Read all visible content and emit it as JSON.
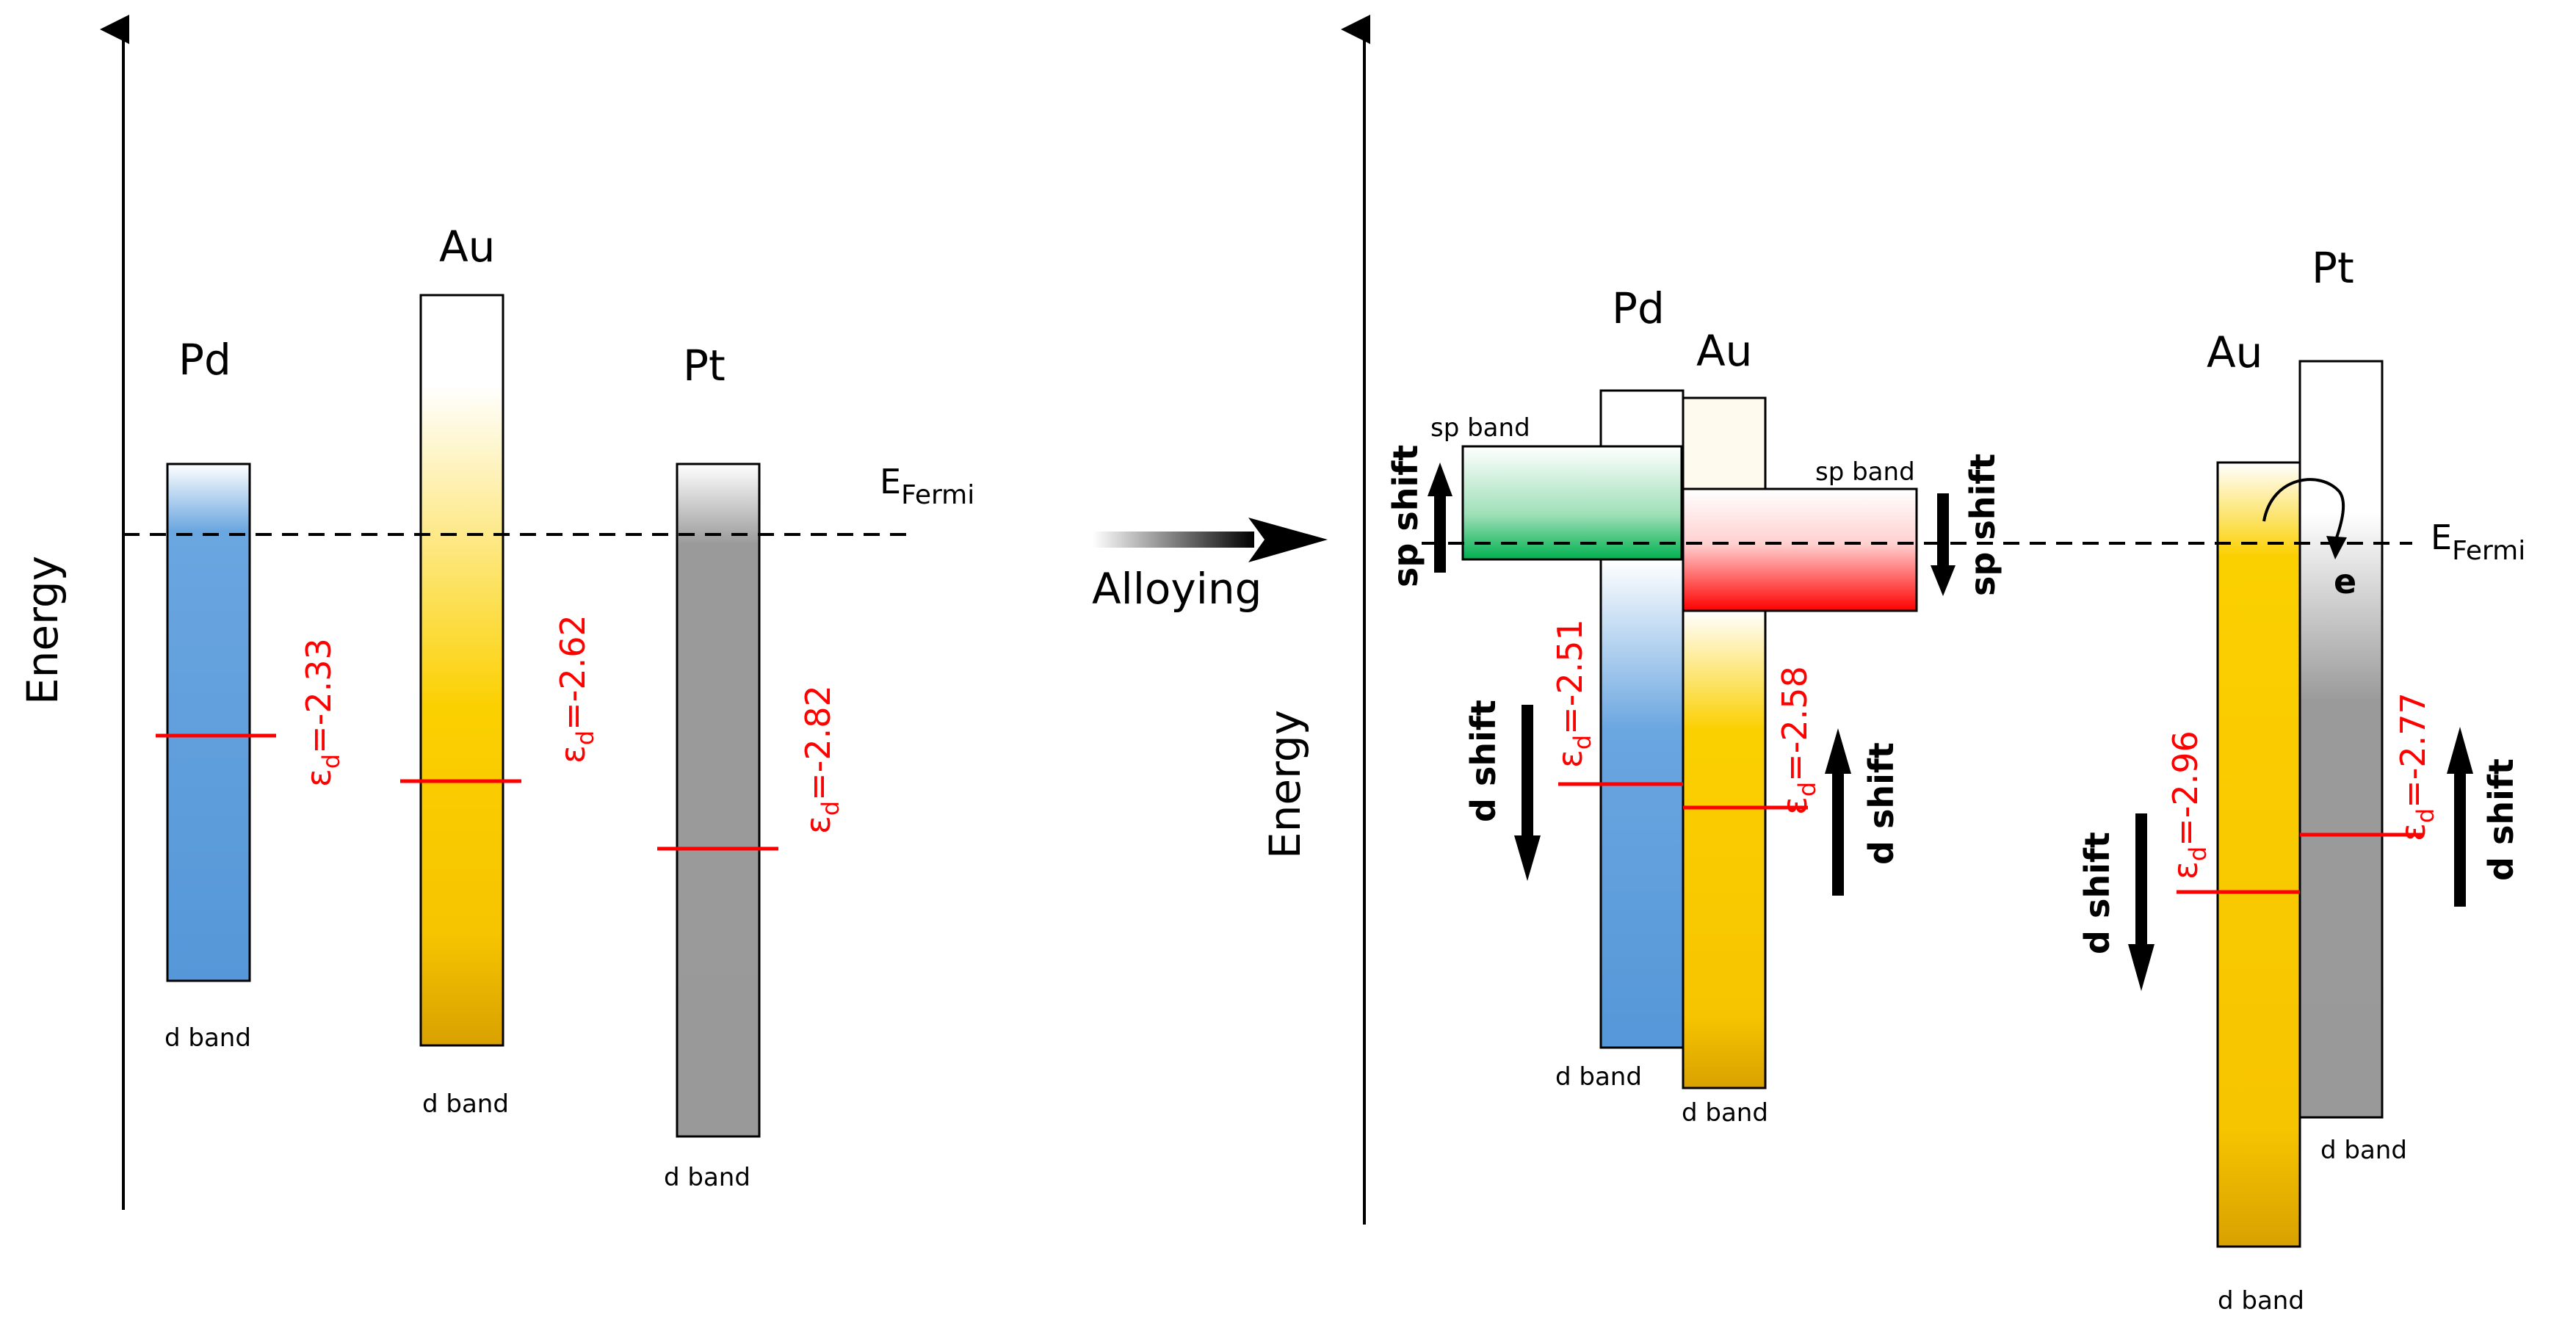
{
  "axes": {
    "energy_label": "Energy"
  },
  "fermi": {
    "label_main": "E",
    "label_sub": "Fermi"
  },
  "transition": {
    "label": "Alloying"
  },
  "pure_metals": [
    {
      "element": "Pd",
      "band_label": "d band",
      "ed_prefix": "ε",
      "ed_sub": "d",
      "ed_value": "=-2.33",
      "color": "#5b9bdb"
    },
    {
      "element": "Au",
      "band_label": "d band",
      "ed_prefix": "ε",
      "ed_sub": "d",
      "ed_value": "=-2.62",
      "color": "#f9c800"
    },
    {
      "element": "Pt",
      "band_label": "d band",
      "ed_prefix": "ε",
      "ed_sub": "d",
      "ed_value": "=-2.82",
      "color": "#9a9a9a"
    }
  ],
  "pdau_alloy": {
    "pd": {
      "element": "Pd",
      "band_label": "d band",
      "sp_label": "sp band",
      "sp_shift_label": "sp shift",
      "d_shift_label": "d shift",
      "ed_prefix": "ε",
      "ed_sub": "d",
      "ed_value": "=-2.51"
    },
    "au": {
      "element": "Au",
      "band_label": "d band",
      "sp_label": "sp band",
      "sp_shift_label": "sp shift",
      "d_shift_label": "d shift",
      "ed_prefix": "ε",
      "ed_sub": "d",
      "ed_value": "=-2.58"
    }
  },
  "ptau_alloy": {
    "au": {
      "element": "Au",
      "band_label": "d band",
      "d_shift_label": "d shift",
      "ed_prefix": "ε",
      "ed_sub": "d",
      "ed_value": "=-2.96"
    },
    "pt": {
      "element": "Pt",
      "band_label": "d band",
      "d_shift_label": "d shift",
      "ed_prefix": "ε",
      "ed_sub": "d",
      "ed_value": "=-2.77"
    },
    "electron_label": "e"
  }
}
